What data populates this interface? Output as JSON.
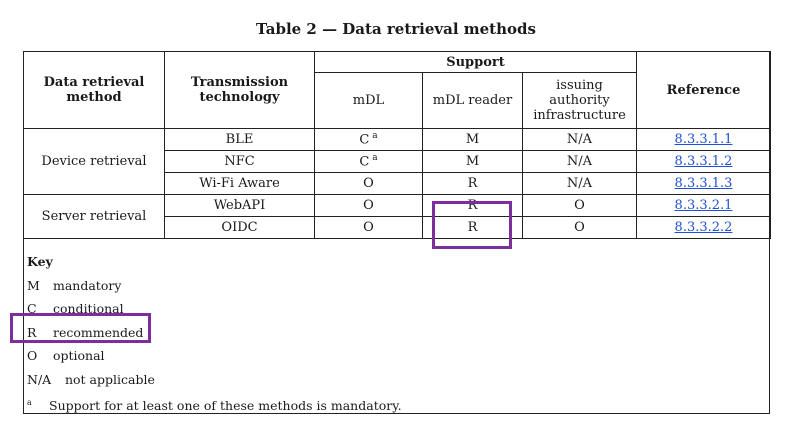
{
  "title": "Table 2 — Data retrieval methods",
  "headers": {
    "method": "Data retrieval method",
    "technology": "Transmission technology",
    "support": "Support",
    "mdl": "mDL",
    "reader": "mDL reader",
    "issuing": "issuing authority infrastructure",
    "reference": "Reference"
  },
  "groups": [
    {
      "name": "Device retrieval",
      "rows": [
        {
          "tech": "BLE",
          "mdl": "C",
          "mdl_note": "a",
          "reader": "M",
          "issuing": "N/A",
          "ref": "8.3.3.1.1"
        },
        {
          "tech": "NFC",
          "mdl": "C",
          "mdl_note": "a",
          "reader": "M",
          "issuing": "N/A",
          "ref": "8.3.3.1.2"
        },
        {
          "tech": "Wi-Fi Aware",
          "mdl": "O",
          "mdl_note": "",
          "reader": "R",
          "issuing": "N/A",
          "ref": "8.3.3.1.3"
        }
      ]
    },
    {
      "name": "Server retrieval",
      "rows": [
        {
          "tech": "WebAPI",
          "mdl": "O",
          "mdl_note": "",
          "reader": "R",
          "issuing": "O",
          "ref": "8.3.3.2.1"
        },
        {
          "tech": "OIDC",
          "mdl": "O",
          "mdl_note": "",
          "reader": "R",
          "issuing": "O",
          "ref": "8.3.3.2.2"
        }
      ]
    }
  ],
  "key": {
    "heading": "Key",
    "items": [
      {
        "abbr": "M",
        "text": "mandatory"
      },
      {
        "abbr": "C",
        "text": "conditional"
      },
      {
        "abbr": "R",
        "text": "recommended"
      },
      {
        "abbr": "O",
        "text": "optional"
      },
      {
        "abbr": "N/A",
        "text": "not applicable"
      }
    ],
    "footnote_mark": "a",
    "footnote": "Support for at least one of these methods is mandatory."
  },
  "highlight_color": "#7b2f9a",
  "link_color": "#1f4fd6"
}
